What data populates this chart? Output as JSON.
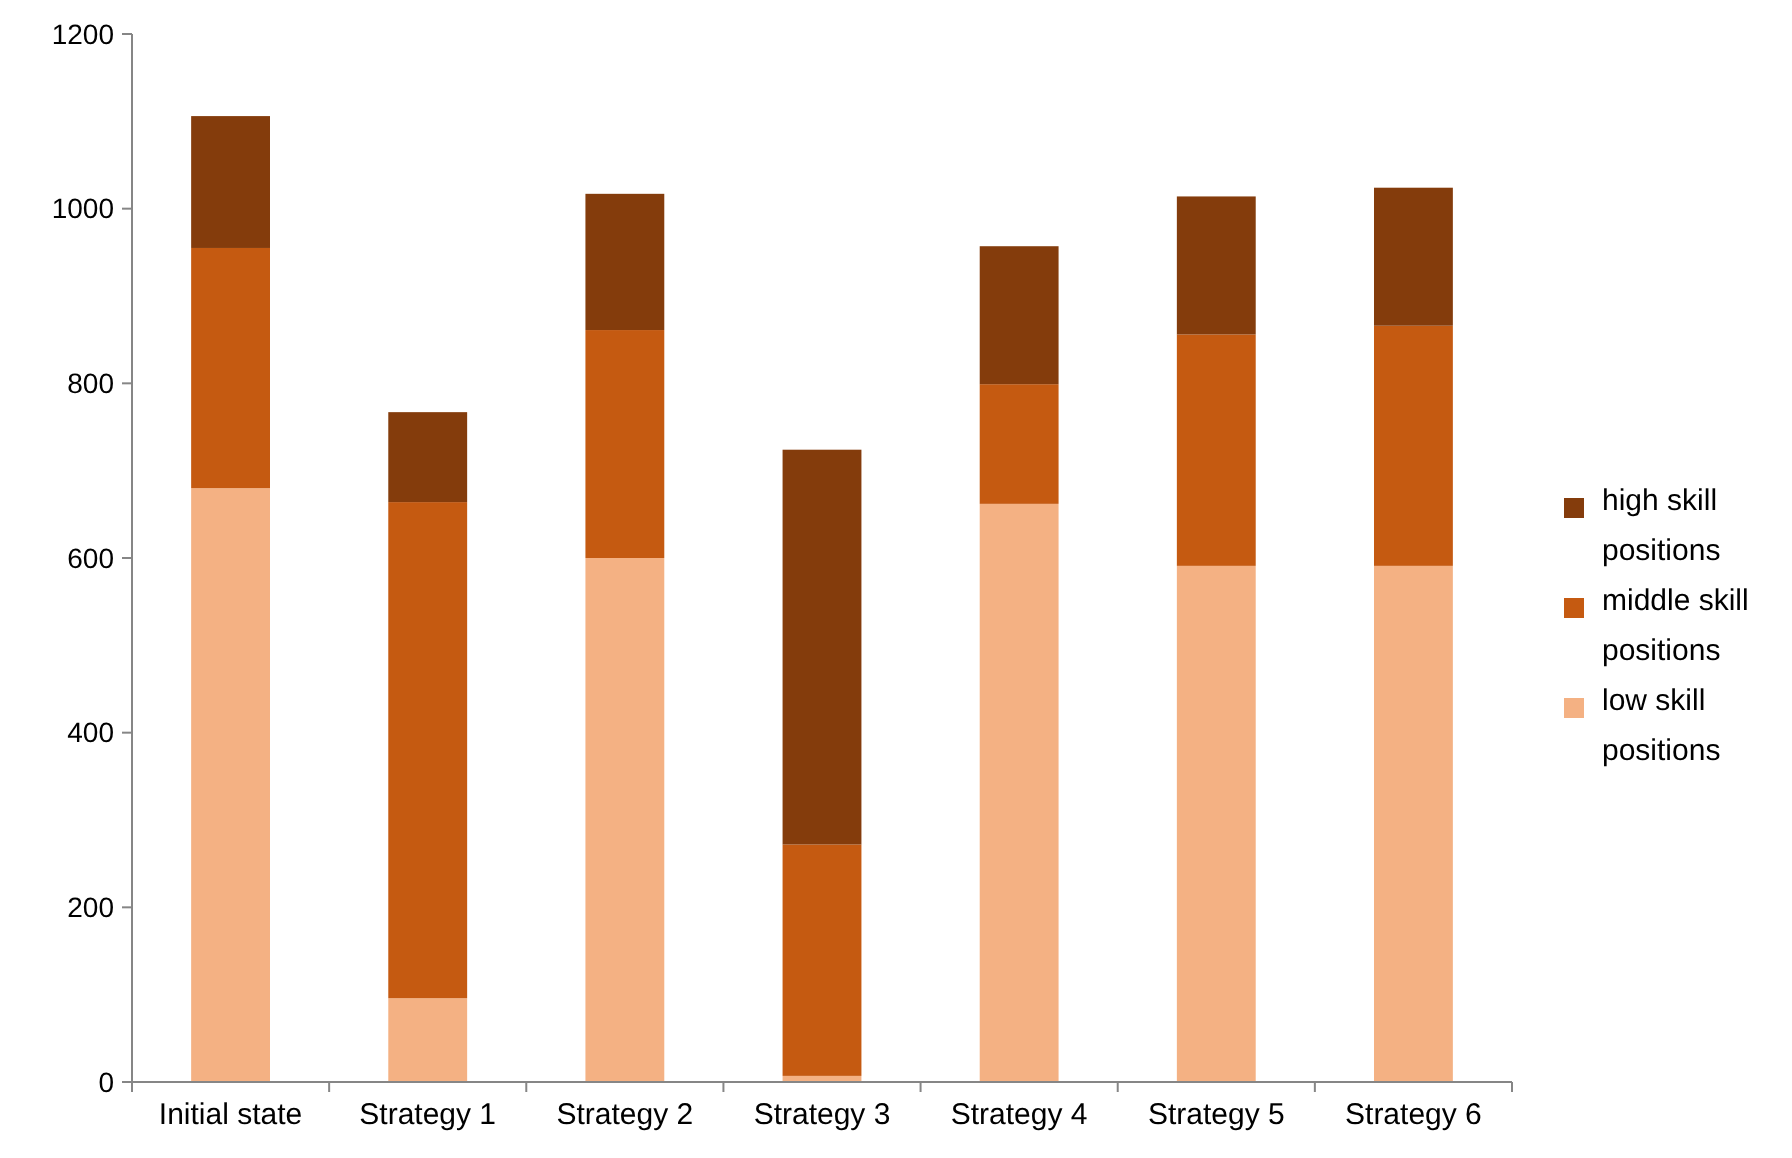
{
  "chart_data": {
    "type": "bar",
    "stacked": true,
    "categories": [
      "Initial state",
      "Strategy 1",
      "Strategy 2",
      "Strategy 3",
      "Strategy 4",
      "Strategy 5",
      "Strategy 6"
    ],
    "series": [
      {
        "name": "low skill positions",
        "color": "#f4b183",
        "values": [
          680,
          96,
          600,
          7,
          662,
          591,
          591
        ]
      },
      {
        "name": "middle skill positions",
        "color": "#c55a11",
        "values": [
          275,
          568,
          261,
          265,
          137,
          265,
          275
        ]
      },
      {
        "name": "high skill positions",
        "color": "#843c0c",
        "values": [
          151,
          103,
          156,
          452,
          158,
          158,
          158
        ]
      }
    ],
    "ylim": [
      0,
      1200
    ],
    "yticks": [
      0,
      200,
      400,
      600,
      800,
      1000,
      1200
    ],
    "legend": "right",
    "grid": false
  }
}
